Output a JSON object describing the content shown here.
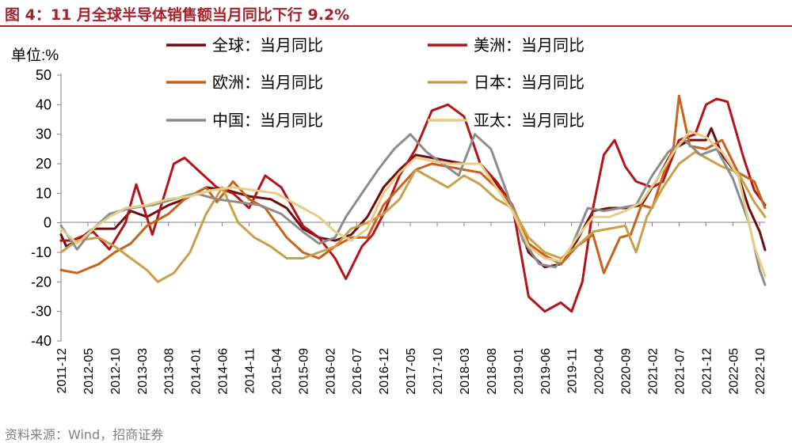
{
  "figure": {
    "title": "图 4：11 月全球半导体销售额当月同比下行 9.2%",
    "source": "资料来源：Wind，招商证券"
  },
  "chart_data": {
    "type": "line",
    "title": "11 月全球半导体销售额当月同比下行 9.2%",
    "ylabel": "单位:%",
    "xlabel": "",
    "ylim": [
      -40,
      50
    ],
    "yticks": [
      -40,
      -30,
      -20,
      -10,
      0,
      10,
      20,
      30,
      40,
      50
    ],
    "grid": false,
    "legend_position": "top",
    "x_start": "2011-12",
    "x_end": "2022-11",
    "x_tick_labels": [
      "2011-12",
      "2012-05",
      "2012-10",
      "2013-03",
      "2013-08",
      "2014-01",
      "2014-06",
      "2014-11",
      "2015-04",
      "2015-09",
      "2016-02",
      "2016-07",
      "2016-12",
      "2017-05",
      "2017-10",
      "2018-03",
      "2018-08",
      "2019-01",
      "2019-06",
      "2019-11",
      "2020-04",
      "2020-09",
      "2021-02",
      "2021-07",
      "2021-12",
      "2022-05",
      "2022-10"
    ],
    "series": [
      {
        "name": "全球：当月同比",
        "color": "#6e0c10",
        "width": 3,
        "points": [
          [
            "2011-12",
            -4
          ],
          [
            "2012-01",
            -8
          ],
          [
            "2012-03",
            -6
          ],
          [
            "2012-06",
            -2
          ],
          [
            "2012-10",
            -2
          ],
          [
            "2013-01",
            4
          ],
          [
            "2013-04",
            2
          ],
          [
            "2013-08",
            6
          ],
          [
            "2013-11",
            8
          ],
          [
            "2014-03",
            12
          ],
          [
            "2014-07",
            11
          ],
          [
            "2014-11",
            9
          ],
          [
            "2015-03",
            8
          ],
          [
            "2015-06",
            5
          ],
          [
            "2015-09",
            -2
          ],
          [
            "2015-12",
            -5
          ],
          [
            "2016-03",
            -6
          ],
          [
            "2016-06",
            -4
          ],
          [
            "2016-09",
            2
          ],
          [
            "2016-12",
            12
          ],
          [
            "2017-03",
            18
          ],
          [
            "2017-06",
            23
          ],
          [
            "2017-09",
            22
          ],
          [
            "2017-12",
            21
          ],
          [
            "2018-03",
            20
          ],
          [
            "2018-06",
            20
          ],
          [
            "2018-09",
            13
          ],
          [
            "2018-12",
            5
          ],
          [
            "2019-03",
            -10
          ],
          [
            "2019-06",
            -15
          ],
          [
            "2019-09",
            -14
          ],
          [
            "2019-12",
            -6
          ],
          [
            "2020-03",
            4
          ],
          [
            "2020-06",
            5
          ],
          [
            "2020-09",
            5
          ],
          [
            "2020-12",
            6
          ],
          [
            "2021-03",
            15
          ],
          [
            "2021-06",
            25
          ],
          [
            "2021-09",
            28
          ],
          [
            "2021-12",
            28
          ],
          [
            "2022-01",
            32
          ],
          [
            "2022-03",
            23
          ],
          [
            "2022-06",
            16
          ],
          [
            "2022-08",
            5
          ],
          [
            "2022-10",
            -3
          ],
          [
            "2022-11",
            -9.2
          ]
        ]
      },
      {
        "name": "美洲：当月同比",
        "color": "#b31419",
        "width": 3,
        "points": [
          [
            "2011-12",
            -6
          ],
          [
            "2012-02",
            -6
          ],
          [
            "2012-06",
            -3
          ],
          [
            "2012-09",
            -9
          ],
          [
            "2012-12",
            0
          ],
          [
            "2013-02",
            13
          ],
          [
            "2013-05",
            -4
          ],
          [
            "2013-09",
            20
          ],
          [
            "2013-11",
            22
          ],
          [
            "2014-02",
            17
          ],
          [
            "2014-05",
            12
          ],
          [
            "2014-08",
            10
          ],
          [
            "2014-11",
            5
          ],
          [
            "2015-02",
            16
          ],
          [
            "2015-05",
            12
          ],
          [
            "2015-09",
            -1
          ],
          [
            "2015-12",
            -5
          ],
          [
            "2016-03",
            -12
          ],
          [
            "2016-05",
            -19
          ],
          [
            "2016-08",
            -8
          ],
          [
            "2016-10",
            -4
          ],
          [
            "2016-12",
            3
          ],
          [
            "2017-03",
            16
          ],
          [
            "2017-06",
            25
          ],
          [
            "2017-09",
            38
          ],
          [
            "2017-12",
            40
          ],
          [
            "2018-03",
            36
          ],
          [
            "2018-06",
            20
          ],
          [
            "2018-09",
            14
          ],
          [
            "2018-12",
            6
          ],
          [
            "2019-03",
            -25
          ],
          [
            "2019-06",
            -30
          ],
          [
            "2019-09",
            -27
          ],
          [
            "2019-11",
            -30
          ],
          [
            "2020-01",
            -20
          ],
          [
            "2020-03",
            5
          ],
          [
            "2020-05",
            23
          ],
          [
            "2020-07",
            28
          ],
          [
            "2020-09",
            19
          ],
          [
            "2020-11",
            14
          ],
          [
            "2021-02",
            12
          ],
          [
            "2021-04",
            14
          ],
          [
            "2021-07",
            28
          ],
          [
            "2021-10",
            30
          ],
          [
            "2021-12",
            40
          ],
          [
            "2022-02",
            42
          ],
          [
            "2022-04",
            41
          ],
          [
            "2022-07",
            22
          ],
          [
            "2022-09",
            11
          ],
          [
            "2022-11",
            6
          ]
        ]
      },
      {
        "name": "欧洲：当月同比",
        "color": "#c8621a",
        "width": 3,
        "points": [
          [
            "2011-12",
            -16
          ],
          [
            "2012-03",
            -17
          ],
          [
            "2012-07",
            -14
          ],
          [
            "2012-10",
            -10
          ],
          [
            "2013-01",
            -7
          ],
          [
            "2013-04",
            -1
          ],
          [
            "2013-08",
            3
          ],
          [
            "2013-11",
            8
          ],
          [
            "2014-03",
            12
          ],
          [
            "2014-05",
            7
          ],
          [
            "2014-08",
            14
          ],
          [
            "2014-11",
            8
          ],
          [
            "2015-02",
            5
          ],
          [
            "2015-06",
            -5
          ],
          [
            "2015-09",
            -10
          ],
          [
            "2015-12",
            -12
          ],
          [
            "2016-03",
            -8
          ],
          [
            "2016-06",
            -5
          ],
          [
            "2016-09",
            -5
          ],
          [
            "2016-12",
            6
          ],
          [
            "2017-03",
            12
          ],
          [
            "2017-06",
            18
          ],
          [
            "2017-09",
            20
          ],
          [
            "2017-12",
            19
          ],
          [
            "2018-03",
            18
          ],
          [
            "2018-06",
            17
          ],
          [
            "2018-09",
            12
          ],
          [
            "2018-12",
            6
          ],
          [
            "2019-03",
            -7
          ],
          [
            "2019-06",
            -11
          ],
          [
            "2019-09",
            -14
          ],
          [
            "2019-12",
            -8
          ],
          [
            "2020-03",
            -4
          ],
          [
            "2020-05",
            -17
          ],
          [
            "2020-08",
            -5
          ],
          [
            "2020-10",
            -4
          ],
          [
            "2020-12",
            6
          ],
          [
            "2021-02",
            5
          ],
          [
            "2021-04",
            16
          ],
          [
            "2021-06",
            26
          ],
          [
            "2021-07",
            43
          ],
          [
            "2021-09",
            26
          ],
          [
            "2021-12",
            25
          ],
          [
            "2022-03",
            28
          ],
          [
            "2022-06",
            17
          ],
          [
            "2022-09",
            14
          ],
          [
            "2022-11",
            5
          ]
        ]
      },
      {
        "name": "日本：当月同比",
        "color": "#c9a04a",
        "width": 3,
        "points": [
          [
            "2011-12",
            -10
          ],
          [
            "2012-03",
            -6
          ],
          [
            "2012-07",
            -5
          ],
          [
            "2012-10",
            -8
          ],
          [
            "2013-01",
            -12
          ],
          [
            "2013-04",
            -16
          ],
          [
            "2013-06",
            -20
          ],
          [
            "2013-09",
            -17
          ],
          [
            "2013-12",
            -10
          ],
          [
            "2014-03",
            3
          ],
          [
            "2014-06",
            12
          ],
          [
            "2014-09",
            0
          ],
          [
            "2014-12",
            -5
          ],
          [
            "2015-03",
            -8
          ],
          [
            "2015-06",
            -12
          ],
          [
            "2015-09",
            -12
          ],
          [
            "2015-12",
            -10
          ],
          [
            "2016-03",
            -8
          ],
          [
            "2016-06",
            -2
          ],
          [
            "2016-09",
            0
          ],
          [
            "2016-12",
            3
          ],
          [
            "2017-03",
            8
          ],
          [
            "2017-06",
            18
          ],
          [
            "2017-09",
            15
          ],
          [
            "2017-12",
            12
          ],
          [
            "2018-03",
            16
          ],
          [
            "2018-06",
            13
          ],
          [
            "2018-09",
            8
          ],
          [
            "2018-12",
            5
          ],
          [
            "2019-03",
            -5
          ],
          [
            "2019-06",
            -10
          ],
          [
            "2019-09",
            -12
          ],
          [
            "2019-12",
            -8
          ],
          [
            "2020-03",
            -3
          ],
          [
            "2020-06",
            -2
          ],
          [
            "2020-09",
            -1
          ],
          [
            "2020-11",
            -10
          ],
          [
            "2021-01",
            2
          ],
          [
            "2021-04",
            12
          ],
          [
            "2021-07",
            20
          ],
          [
            "2021-10",
            24
          ],
          [
            "2021-12",
            22
          ],
          [
            "2022-03",
            19
          ],
          [
            "2022-06",
            17
          ],
          [
            "2022-09",
            7
          ],
          [
            "2022-11",
            2
          ]
        ]
      },
      {
        "name": "中国：当月同比",
        "color": "#8c8c8c",
        "width": 3,
        "points": [
          [
            "2011-12",
            -1
          ],
          [
            "2012-03",
            -9
          ],
          [
            "2012-06",
            -2
          ],
          [
            "2012-09",
            3
          ],
          [
            "2013-01",
            5
          ],
          [
            "2013-05",
            6
          ],
          [
            "2013-09",
            8
          ],
          [
            "2014-01",
            10
          ],
          [
            "2014-05",
            8
          ],
          [
            "2014-09",
            7
          ],
          [
            "2015-01",
            6
          ],
          [
            "2015-05",
            3
          ],
          [
            "2015-09",
            -3
          ],
          [
            "2015-12",
            -7
          ],
          [
            "2016-03",
            -5
          ],
          [
            "2016-05",
            2
          ],
          [
            "2016-08",
            10
          ],
          [
            "2016-11",
            18
          ],
          [
            "2017-02",
            25
          ],
          [
            "2017-05",
            30
          ],
          [
            "2017-08",
            24
          ],
          [
            "2017-11",
            20
          ],
          [
            "2018-02",
            16
          ],
          [
            "2018-05",
            30
          ],
          [
            "2018-08",
            25
          ],
          [
            "2018-11",
            10
          ],
          [
            "2019-02",
            -6
          ],
          [
            "2019-05",
            -14
          ],
          [
            "2019-08",
            -15
          ],
          [
            "2019-11",
            -8
          ],
          [
            "2020-02",
            5
          ],
          [
            "2020-05",
            4
          ],
          [
            "2020-08",
            5
          ],
          [
            "2020-11",
            6
          ],
          [
            "2021-02",
            16
          ],
          [
            "2021-05",
            24
          ],
          [
            "2021-08",
            28
          ],
          [
            "2021-11",
            23
          ],
          [
            "2022-02",
            25
          ],
          [
            "2022-05",
            15
          ],
          [
            "2022-08",
            0
          ],
          [
            "2022-10",
            -16
          ],
          [
            "2022-11",
            -21
          ]
        ]
      },
      {
        "name": "亚太：当月同比",
        "color": "#e8cc86",
        "width": 3,
        "points": [
          [
            "2011-12",
            -2
          ],
          [
            "2012-03",
            -7
          ],
          [
            "2012-06",
            -2
          ],
          [
            "2012-09",
            2
          ],
          [
            "2012-12",
            5
          ],
          [
            "2013-04",
            6
          ],
          [
            "2013-08",
            8
          ],
          [
            "2013-12",
            9
          ],
          [
            "2014-04",
            11
          ],
          [
            "2014-08",
            12
          ],
          [
            "2014-12",
            11
          ],
          [
            "2015-04",
            10
          ],
          [
            "2015-08",
            6
          ],
          [
            "2015-12",
            2
          ],
          [
            "2016-03",
            -3
          ],
          [
            "2016-06",
            -6
          ],
          [
            "2016-09",
            -2
          ],
          [
            "2016-12",
            10
          ],
          [
            "2017-03",
            17
          ],
          [
            "2017-06",
            22
          ],
          [
            "2017-09",
            21
          ],
          [
            "2017-12",
            20
          ],
          [
            "2018-03",
            20
          ],
          [
            "2018-06",
            20
          ],
          [
            "2018-09",
            12
          ],
          [
            "2018-12",
            4
          ],
          [
            "2019-03",
            -8
          ],
          [
            "2019-06",
            -12
          ],
          [
            "2019-09",
            -13
          ],
          [
            "2019-12",
            -5
          ],
          [
            "2020-03",
            2
          ],
          [
            "2020-06",
            2
          ],
          [
            "2020-09",
            4
          ],
          [
            "2020-12",
            7
          ],
          [
            "2021-03",
            15
          ],
          [
            "2021-06",
            24
          ],
          [
            "2021-09",
            31
          ],
          [
            "2021-12",
            29
          ],
          [
            "2022-03",
            24
          ],
          [
            "2022-06",
            16
          ],
          [
            "2022-09",
            -8
          ],
          [
            "2022-11",
            -18
          ]
        ]
      }
    ]
  }
}
